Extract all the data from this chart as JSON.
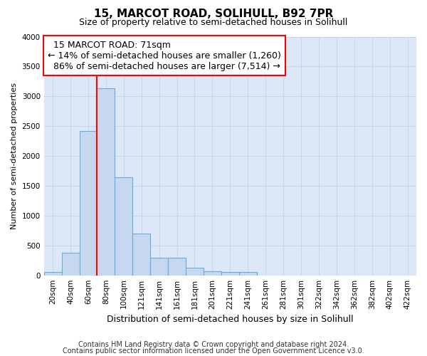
{
  "title": "15, MARCOT ROAD, SOLIHULL, B92 7PR",
  "subtitle": "Size of property relative to semi-detached houses in Solihull",
  "xlabel": "Distribution of semi-detached houses by size in Solihull",
  "ylabel": "Number of semi-detached properties",
  "footnote1": "Contains HM Land Registry data © Crown copyright and database right 2024.",
  "footnote2": "Contains public sector information licensed under the Open Government Licence v3.0.",
  "bar_labels": [
    "20sqm",
    "40sqm",
    "60sqm",
    "80sqm",
    "100sqm",
    "121sqm",
    "141sqm",
    "161sqm",
    "181sqm",
    "201sqm",
    "221sqm",
    "241sqm",
    "261sqm",
    "281sqm",
    "301sqm",
    "322sqm",
    "342sqm",
    "362sqm",
    "382sqm",
    "402sqm",
    "422sqm"
  ],
  "bar_values": [
    50,
    380,
    2420,
    3140,
    1640,
    700,
    290,
    290,
    130,
    70,
    55,
    50,
    0,
    0,
    0,
    0,
    0,
    0,
    0,
    0,
    0
  ],
  "bar_color": "#c5d8f0",
  "bar_edgecolor": "#6aaad4",
  "ylim": [
    0,
    4000
  ],
  "yticks": [
    0,
    500,
    1000,
    1500,
    2000,
    2500,
    3000,
    3500,
    4000
  ],
  "grid_color": "#c8d4e8",
  "bg_color": "#dce8f8",
  "property_label": "15 MARCOT ROAD: 71sqm",
  "pct_smaller": 14,
  "pct_smaller_n": "1,260",
  "pct_larger": 86,
  "pct_larger_n": "7,514",
  "annotation_box_color": "white",
  "annotation_box_edgecolor": "red",
  "vline_color": "red",
  "title_fontsize": 11,
  "subtitle_fontsize": 9,
  "annotation_fontsize": 9,
  "tick_fontsize": 7.5,
  "xlabel_fontsize": 9,
  "ylabel_fontsize": 8,
  "footnote_fontsize": 7
}
